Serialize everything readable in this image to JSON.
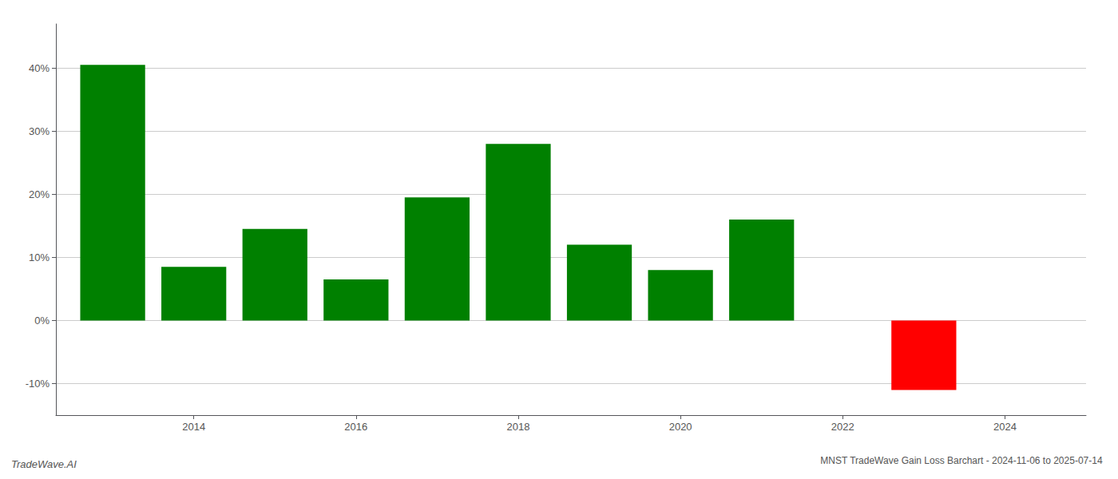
{
  "chart_data": {
    "type": "bar",
    "title": "MNST TradeWave Gain Loss Barchart - 2024-11-06 to 2025-07-14",
    "annotations": [
      "TradeWave.AI"
    ],
    "x": [
      2013,
      2014,
      2015,
      2016,
      2017,
      2018,
      2019,
      2020,
      2021,
      2023
    ],
    "values": [
      40.5,
      8.5,
      14.5,
      6.5,
      19.5,
      28.0,
      12.0,
      8.0,
      16.0,
      -11.0
    ],
    "colors": [
      "#008000",
      "#008000",
      "#008000",
      "#008000",
      "#008000",
      "#008000",
      "#008000",
      "#008000",
      "#008000",
      "#ff0000"
    ],
    "xlim": [
      2012.3,
      2025.0
    ],
    "xticks": [
      2014,
      2016,
      2018,
      2020,
      2022,
      2024
    ],
    "ylim": [
      -15,
      47
    ],
    "yticks": [
      {
        "value": -10,
        "label": "-10%"
      },
      {
        "value": 0,
        "label": "0%"
      },
      {
        "value": 10,
        "label": "10%"
      },
      {
        "value": 20,
        "label": "20%"
      },
      {
        "value": 30,
        "label": "30%"
      },
      {
        "value": 40,
        "label": "40%"
      }
    ],
    "grid": true
  }
}
